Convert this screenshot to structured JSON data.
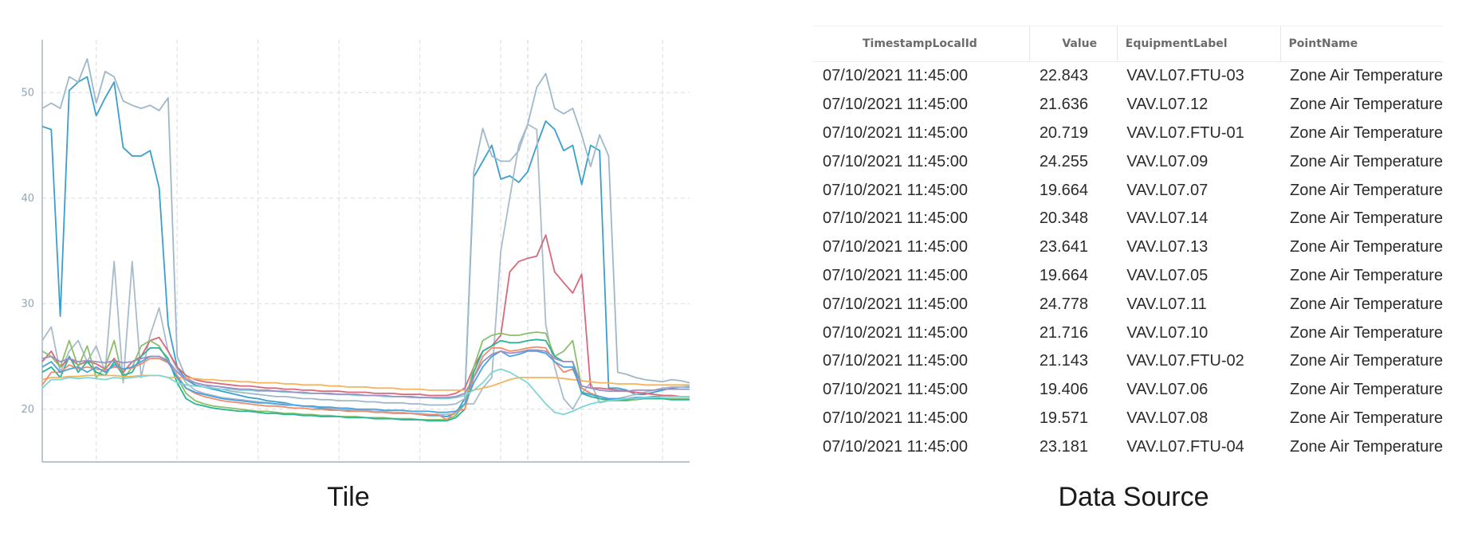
{
  "captions": {
    "left": "Tile",
    "right": "Data Source"
  },
  "chart_data": {
    "type": "line",
    "title": "",
    "xlabel": "",
    "ylabel": "",
    "ylim": [
      15,
      55
    ],
    "yticks": [
      20,
      30,
      40,
      50
    ],
    "grid": true,
    "legend": "none",
    "x": [
      0,
      1,
      2,
      3,
      4,
      5,
      6,
      7,
      8,
      9,
      10,
      11,
      12,
      13,
      14,
      15,
      16,
      17,
      18,
      19,
      20,
      21,
      22,
      23,
      24,
      25,
      26,
      27,
      28,
      29,
      30,
      31,
      32,
      33,
      34,
      35,
      36,
      37,
      38,
      39,
      40,
      41,
      42,
      43,
      44,
      45,
      46,
      47,
      48,
      49,
      50,
      51,
      52,
      53,
      54,
      55,
      56,
      57,
      58,
      59,
      60,
      61,
      62,
      63,
      64,
      65,
      66,
      67,
      68,
      69,
      70,
      71,
      72
    ],
    "series": [
      {
        "color": "#3a9fcf",
        "values": [
          46.8,
          46.5,
          28.8,
          50.2,
          51.0,
          51.5,
          47.8,
          49.5,
          51.0,
          44.8,
          44.0,
          44.0,
          44.5,
          41.0,
          28.0,
          24.0,
          22.8,
          22.3,
          22.1,
          21.9,
          21.7,
          21.5,
          21.3,
          21.1,
          21.0,
          20.8,
          20.7,
          20.6,
          20.4,
          20.3,
          20.2,
          20.1,
          20.0,
          20.0,
          19.9,
          19.9,
          19.8,
          19.8,
          19.7,
          19.7,
          19.6,
          19.6,
          19.5,
          19.4,
          19.4,
          19.3,
          19.6,
          21.0,
          42.0,
          43.5,
          45.0,
          41.8,
          42.1,
          41.5,
          42.5,
          45.0,
          47.3,
          46.5,
          44.5,
          45.0,
          41.3,
          45.0,
          44.5,
          22.0,
          22.0,
          21.8,
          21.4,
          21.4,
          21.6,
          21.8,
          22.0,
          22.1,
          22.1
        ]
      },
      {
        "color": "#9fb8c9",
        "values": [
          48.5,
          49.0,
          48.5,
          51.5,
          51.0,
          53.2,
          49.0,
          52.0,
          51.5,
          49.2,
          48.8,
          48.5,
          48.8,
          48.3,
          49.5,
          25.0,
          23.0,
          22.5,
          22.3,
          22.0,
          21.9,
          21.7,
          21.6,
          21.5,
          21.4,
          21.3,
          21.2,
          21.2,
          21.1,
          21.0,
          21.0,
          20.9,
          20.9,
          20.8,
          20.8,
          20.8,
          20.7,
          20.7,
          20.6,
          20.6,
          20.6,
          20.5,
          20.5,
          20.4,
          20.4,
          20.4,
          20.5,
          21.0,
          42.5,
          46.6,
          44.0,
          43.5,
          43.5,
          44.5,
          47.0,
          50.5,
          51.8,
          48.5,
          48.0,
          48.5,
          46.0,
          43.0,
          46.0,
          44.0,
          23.5,
          23.3,
          23.0,
          22.8,
          22.7,
          22.6,
          22.8,
          22.7,
          22.5
        ]
      },
      {
        "color": "#a8bccb",
        "values": [
          26.5,
          27.8,
          23.5,
          25.5,
          26.5,
          24.5,
          26.0,
          23.5,
          34.0,
          22.5,
          34.0,
          23.0,
          27.0,
          29.6,
          25.5,
          23.8,
          22.5,
          21.8,
          21.5,
          21.3,
          21.1,
          21.0,
          20.9,
          20.8,
          20.7,
          20.6,
          20.5,
          20.5,
          20.4,
          20.3,
          20.2,
          20.2,
          20.1,
          20.0,
          20.0,
          19.9,
          19.9,
          19.8,
          19.8,
          19.7,
          19.7,
          19.6,
          19.6,
          19.5,
          19.5,
          19.5,
          19.6,
          20.5,
          20.5,
          22.0,
          23.0,
          35.0,
          40.0,
          45.0,
          47.0,
          46.5,
          28.0,
          24.0,
          21.0,
          20.0,
          21.5,
          22.5,
          20.6,
          20.8,
          21.0,
          21.2,
          21.4,
          21.6,
          21.8,
          22.0,
          22.1,
          22.1,
          22.2
        ]
      },
      {
        "color": "#d9687a",
        "values": [
          24.5,
          25.5,
          24.0,
          24.8,
          24.2,
          24.5,
          24.3,
          23.8,
          24.8,
          23.5,
          24.5,
          25.0,
          26.5,
          26.8,
          25.5,
          24.0,
          23.2,
          22.8,
          22.6,
          22.5,
          22.4,
          22.3,
          22.2,
          22.2,
          22.1,
          22.0,
          22.0,
          21.9,
          21.9,
          21.8,
          21.8,
          21.7,
          21.7,
          21.7,
          21.6,
          21.6,
          21.6,
          21.5,
          21.5,
          21.5,
          21.4,
          21.4,
          21.4,
          21.3,
          21.3,
          21.3,
          21.5,
          22.0,
          24.0,
          25.5,
          26.0,
          27.0,
          33.0,
          34.0,
          34.3,
          34.5,
          36.5,
          33.0,
          32.0,
          31.0,
          32.8,
          22.0,
          22.0,
          21.9,
          21.8,
          21.7,
          21.6,
          21.5,
          21.4,
          21.3,
          21.3,
          21.2,
          21.2
        ]
      },
      {
        "color": "#8cbf6a",
        "values": [
          25.5,
          25.0,
          24.0,
          26.5,
          24.0,
          26.0,
          23.0,
          24.0,
          26.5,
          22.8,
          24.0,
          26.0,
          26.5,
          26.0,
          24.5,
          23.0,
          21.5,
          20.8,
          20.5,
          20.3,
          20.2,
          20.1,
          20.0,
          19.9,
          19.8,
          19.8,
          19.7,
          19.6,
          19.6,
          19.5,
          19.5,
          19.4,
          19.4,
          19.3,
          19.3,
          19.3,
          19.2,
          19.2,
          19.2,
          19.1,
          19.1,
          19.1,
          19.0,
          19.0,
          19.0,
          19.0,
          19.4,
          20.5,
          24.0,
          26.5,
          27.0,
          27.2,
          27.0,
          27.0,
          27.2,
          27.3,
          27.2,
          25.0,
          25.5,
          26.5,
          22.0,
          21.5,
          21.0,
          20.8,
          20.8,
          20.8,
          20.9,
          21.0,
          21.0,
          21.0,
          21.0,
          21.0,
          21.0
        ]
      },
      {
        "color": "#2ab394",
        "values": [
          23.5,
          24.0,
          23.0,
          25.0,
          23.5,
          24.5,
          23.5,
          23.2,
          24.5,
          23.2,
          23.5,
          25.0,
          25.8,
          25.8,
          24.8,
          22.5,
          21.0,
          20.5,
          20.3,
          20.1,
          20.0,
          19.9,
          19.8,
          19.8,
          19.7,
          19.6,
          19.6,
          19.5,
          19.5,
          19.4,
          19.4,
          19.3,
          19.3,
          19.3,
          19.2,
          19.2,
          19.2,
          19.1,
          19.1,
          19.1,
          19.0,
          19.0,
          19.0,
          18.9,
          18.9,
          18.9,
          19.2,
          20.0,
          23.5,
          25.5,
          26.0,
          26.5,
          26.3,
          26.3,
          26.5,
          26.6,
          26.5,
          25.0,
          24.5,
          24.5,
          21.5,
          21.2,
          21.0,
          20.9,
          20.9,
          20.9,
          21.0,
          21.0,
          21.0,
          21.0,
          20.9,
          20.9,
          20.9
        ]
      },
      {
        "color": "#f5b45a",
        "values": [
          22.8,
          23.0,
          23.0,
          23.1,
          23.1,
          23.2,
          23.2,
          23.2,
          23.2,
          23.1,
          23.1,
          23.2,
          23.2,
          23.2,
          23.0,
          23.0,
          23.0,
          22.9,
          22.8,
          22.8,
          22.7,
          22.7,
          22.6,
          22.6,
          22.5,
          22.5,
          22.5,
          22.4,
          22.4,
          22.3,
          22.3,
          22.3,
          22.2,
          22.2,
          22.1,
          22.1,
          22.1,
          22.0,
          22.0,
          22.0,
          21.9,
          21.9,
          21.9,
          21.8,
          21.8,
          21.8,
          21.8,
          21.8,
          21.8,
          22.0,
          22.2,
          22.5,
          22.8,
          23.0,
          23.0,
          23.0,
          23.0,
          23.0,
          22.9,
          22.8,
          22.7,
          22.6,
          22.5,
          22.5,
          22.4,
          22.4,
          22.4,
          22.3,
          22.3,
          22.3,
          22.3,
          22.3,
          22.3
        ]
      },
      {
        "color": "#f08c6e",
        "values": [
          22.3,
          23.5,
          23.5,
          24.2,
          23.8,
          24.0,
          23.8,
          23.7,
          24.0,
          23.8,
          23.9,
          24.3,
          24.8,
          24.8,
          24.4,
          23.2,
          22.0,
          21.5,
          21.2,
          21.0,
          20.8,
          20.7,
          20.6,
          20.5,
          20.4,
          20.3,
          20.3,
          20.2,
          20.1,
          20.1,
          20.0,
          20.0,
          19.9,
          19.9,
          19.8,
          19.8,
          19.8,
          19.7,
          19.7,
          19.6,
          19.6,
          19.6,
          19.5,
          19.5,
          19.5,
          19.0,
          19.8,
          20.0,
          23.0,
          25.0,
          25.8,
          25.8,
          25.5,
          25.6,
          25.8,
          25.9,
          25.8,
          24.5,
          23.5,
          23.8,
          22.0,
          21.5,
          21.2,
          21.0,
          21.0,
          21.0,
          21.1,
          21.1,
          21.1,
          21.2,
          21.2,
          21.2,
          21.2
        ]
      },
      {
        "color": "#4aa3e0",
        "values": [
          24.0,
          24.5,
          23.5,
          23.8,
          24.0,
          23.5,
          24.0,
          23.5,
          24.2,
          23.8,
          24.0,
          24.5,
          25.0,
          25.0,
          24.5,
          23.0,
          22.0,
          21.6,
          21.4,
          21.2,
          21.0,
          20.9,
          20.8,
          20.7,
          20.6,
          20.6,
          20.5,
          20.4,
          20.4,
          20.3,
          20.3,
          20.2,
          20.2,
          20.1,
          20.1,
          20.0,
          20.0,
          20.0,
          19.9,
          19.9,
          19.9,
          19.8,
          19.8,
          19.8,
          19.7,
          19.7,
          19.8,
          20.5,
          22.5,
          24.0,
          25.0,
          25.5,
          25.0,
          25.2,
          25.5,
          25.5,
          25.3,
          24.5,
          24.0,
          24.0,
          21.6,
          21.4,
          21.2,
          21.0,
          21.0,
          21.0,
          21.1,
          21.1,
          21.2,
          21.2,
          21.2,
          21.2,
          21.2
        ]
      },
      {
        "color": "#7fd6d4",
        "values": [
          22.0,
          22.8,
          22.8,
          23.0,
          22.9,
          23.0,
          22.9,
          22.8,
          23.0,
          22.9,
          23.0,
          23.1,
          23.2,
          23.2,
          23.0,
          22.5,
          22.3,
          22.2,
          22.1,
          22.0,
          21.9,
          21.9,
          21.8,
          21.8,
          21.7,
          21.7,
          21.7,
          21.6,
          21.6,
          21.5,
          21.5,
          21.5,
          21.4,
          21.4,
          21.4,
          21.3,
          21.3,
          21.3,
          21.2,
          21.2,
          21.2,
          21.1,
          21.1,
          21.1,
          21.0,
          21.0,
          21.1,
          21.3,
          21.8,
          22.5,
          23.5,
          23.8,
          23.5,
          23.0,
          22.5,
          21.5,
          20.5,
          19.7,
          19.5,
          19.8,
          20.2,
          20.5,
          20.7,
          20.8,
          20.9,
          21.0,
          21.0,
          21.1,
          21.1,
          21.2,
          21.2,
          21.2,
          21.2
        ]
      },
      {
        "color": "#9b8fc4",
        "values": [
          24.8,
          25.0,
          24.5,
          24.8,
          24.5,
          24.6,
          24.5,
          24.4,
          24.6,
          24.4,
          24.5,
          24.8,
          25.0,
          25.0,
          24.6,
          23.5,
          22.8,
          22.5,
          22.3,
          22.2,
          22.1,
          22.0,
          21.9,
          21.9,
          21.8,
          21.8,
          21.7,
          21.7,
          21.6,
          21.6,
          21.5,
          21.5,
          21.5,
          21.4,
          21.4,
          21.4,
          21.3,
          21.3,
          21.3,
          21.2,
          21.2,
          21.2,
          21.1,
          21.1,
          21.1,
          21.1,
          21.2,
          21.5,
          23.0,
          24.5,
          25.2,
          25.5,
          25.3,
          25.4,
          25.6,
          25.6,
          25.5,
          24.8,
          24.5,
          24.5,
          22.2,
          22.0,
          21.8,
          21.7,
          21.7,
          21.7,
          21.8,
          21.8,
          21.8,
          21.9,
          21.9,
          21.9,
          21.9
        ]
      }
    ]
  },
  "table": {
    "headers": [
      "TimestampLocalId",
      "Value",
      "EquipmentLabel",
      "PointName"
    ],
    "rows": [
      [
        "07/10/2021 11:45:00",
        "22.843",
        "VAV.L07.FTU-03",
        "Zone Air Temperature"
      ],
      [
        "07/10/2021 11:45:00",
        "21.636",
        "VAV.L07.12",
        "Zone Air Temperature"
      ],
      [
        "07/10/2021 11:45:00",
        "20.719",
        "VAV.L07.FTU-01",
        "Zone Air Temperature"
      ],
      [
        "07/10/2021 11:45:00",
        "24.255",
        "VAV.L07.09",
        "Zone Air Temperature"
      ],
      [
        "07/10/2021 11:45:00",
        "19.664",
        "VAV.L07.07",
        "Zone Air Temperature"
      ],
      [
        "07/10/2021 11:45:00",
        "20.348",
        "VAV.L07.14",
        "Zone Air Temperature"
      ],
      [
        "07/10/2021 11:45:00",
        "23.641",
        "VAV.L07.13",
        "Zone Air Temperature"
      ],
      [
        "07/10/2021 11:45:00",
        "19.664",
        "VAV.L07.05",
        "Zone Air Temperature"
      ],
      [
        "07/10/2021 11:45:00",
        "24.778",
        "VAV.L07.11",
        "Zone Air Temperature"
      ],
      [
        "07/10/2021 11:45:00",
        "21.716",
        "VAV.L07.10",
        "Zone Air Temperature"
      ],
      [
        "07/10/2021 11:45:00",
        "21.143",
        "VAV.L07.FTU-02",
        "Zone Air Temperature"
      ],
      [
        "07/10/2021 11:45:00",
        "19.406",
        "VAV.L07.06",
        "Zone Air Temperature"
      ],
      [
        "07/10/2021 11:45:00",
        "19.571",
        "VAV.L07.08",
        "Zone Air Temperature"
      ],
      [
        "07/10/2021 11:45:00",
        "23.181",
        "VAV.L07.FTU-04",
        "Zone Air Temperature"
      ]
    ]
  }
}
